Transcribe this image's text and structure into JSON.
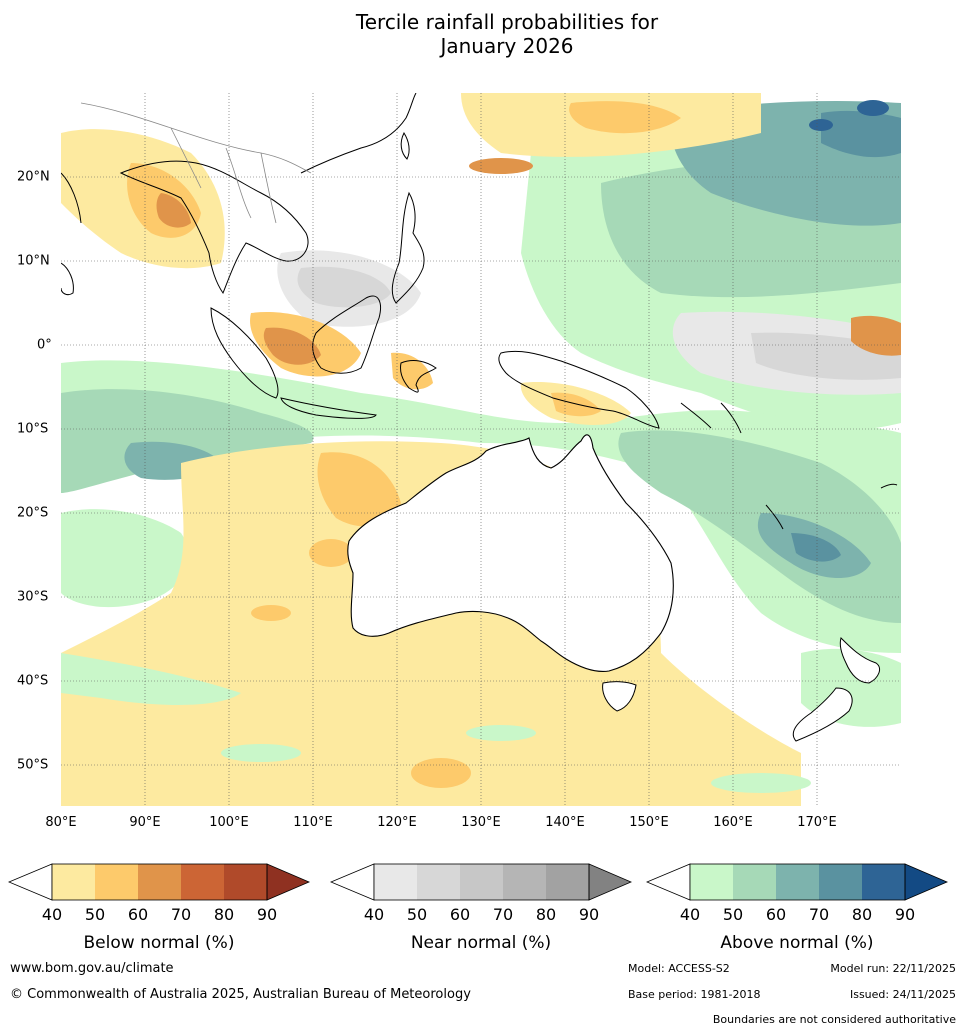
{
  "title_line1": "Tercile rainfall probabilities for",
  "title_line2": "January 2026",
  "longitude_labels": [
    "80°E",
    "90°E",
    "100°E",
    "110°E",
    "120°E",
    "130°E",
    "140°E",
    "150°E",
    "160°E",
    "170°E"
  ],
  "latitude_labels": [
    "20°N",
    "10°N",
    "0°",
    "10°S",
    "20°S",
    "30°S",
    "40°S",
    "50°S"
  ],
  "legends": {
    "below": {
      "caption": "Below normal (%)",
      "ticks": [
        "40",
        "50",
        "60",
        "70",
        "80",
        "90"
      ],
      "colors": [
        "#fdeaa0",
        "#fdca6b",
        "#e0944a",
        "#cc6535",
        "#b04a2a",
        "#8f3121"
      ]
    },
    "near": {
      "caption": "Near normal (%)",
      "ticks": [
        "40",
        "50",
        "60",
        "70",
        "80",
        "90"
      ],
      "colors": [
        "#e8e8e8",
        "#d7d7d7",
        "#c7c7c7",
        "#b5b5b5",
        "#a2a2a2",
        "#828282"
      ]
    },
    "above": {
      "caption": "Above normal (%)",
      "ticks": [
        "40",
        "50",
        "60",
        "70",
        "80",
        "90"
      ],
      "colors": [
        "#c9f7c9",
        "#a6d9b7",
        "#7db3ad",
        "#5a92a0",
        "#2e6495",
        "#134a84"
      ]
    }
  },
  "footer": {
    "website": "www.bom.gov.au/climate",
    "copyright": "© Commonwealth of Australia 2025, Australian Bureau of Meteorology",
    "model": "Model: ACCESS-S2",
    "model_run": "Model run: 22/11/2025",
    "base_period": "Base period: 1981-2018",
    "issued": "Issued: 24/11/2025",
    "disclaimer": "Boundaries are not considered authoritative"
  }
}
